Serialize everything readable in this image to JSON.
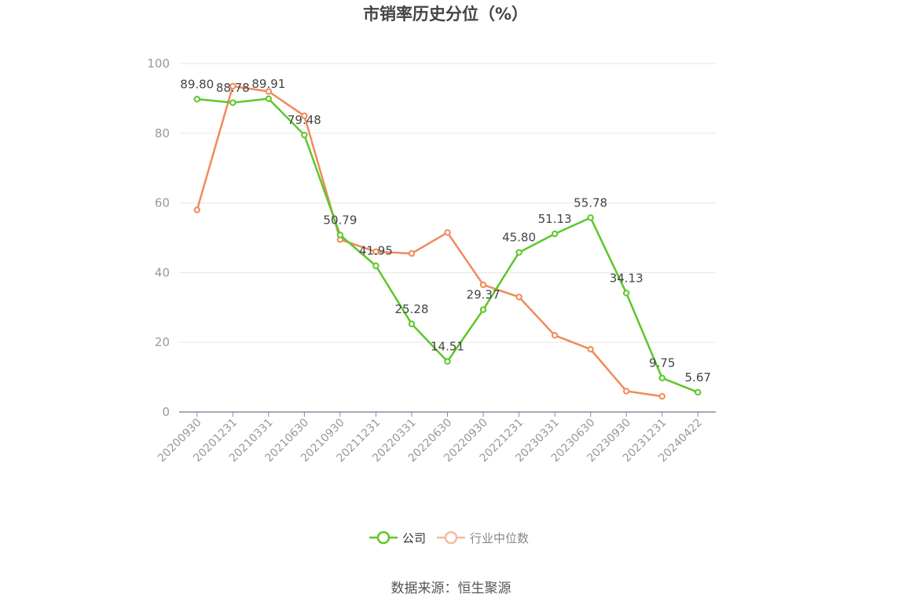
{
  "chart_data": {
    "type": "line",
    "title": "市销率历史分位（%）",
    "categories": [
      "20200930",
      "20201231",
      "20210331",
      "20210630",
      "20210930",
      "20211231",
      "20220331",
      "20220630",
      "20220930",
      "20221231",
      "20230331",
      "20230630",
      "20230930",
      "20231231",
      "20240422"
    ],
    "ylim": [
      0,
      100
    ],
    "yticks": [
      0,
      20,
      40,
      60,
      80,
      100
    ],
    "grid": true,
    "legend_position": "bottom",
    "series": [
      {
        "name": "公司",
        "color": "#5cc72a",
        "values": [
          89.8,
          88.78,
          89.91,
          79.48,
          50.79,
          41.95,
          25.28,
          14.51,
          29.37,
          45.8,
          51.13,
          55.78,
          34.13,
          9.75,
          5.67
        ],
        "labels": [
          "89.80",
          "88.78",
          "89.91",
          "79.48",
          "50.79",
          "41.95",
          "25.28",
          "14.51",
          "29.37",
          "45.80",
          "51.13",
          "55.78",
          "34.13",
          "9.75",
          "5.67"
        ]
      },
      {
        "name": "行业中位数",
        "color": "#f08a5a",
        "values": [
          58,
          93.5,
          92,
          85,
          49.5,
          46,
          45.5,
          51.5,
          36.5,
          33,
          22,
          18,
          6,
          4.5,
          null
        ]
      }
    ]
  },
  "source": "数据来源：恒生聚源"
}
